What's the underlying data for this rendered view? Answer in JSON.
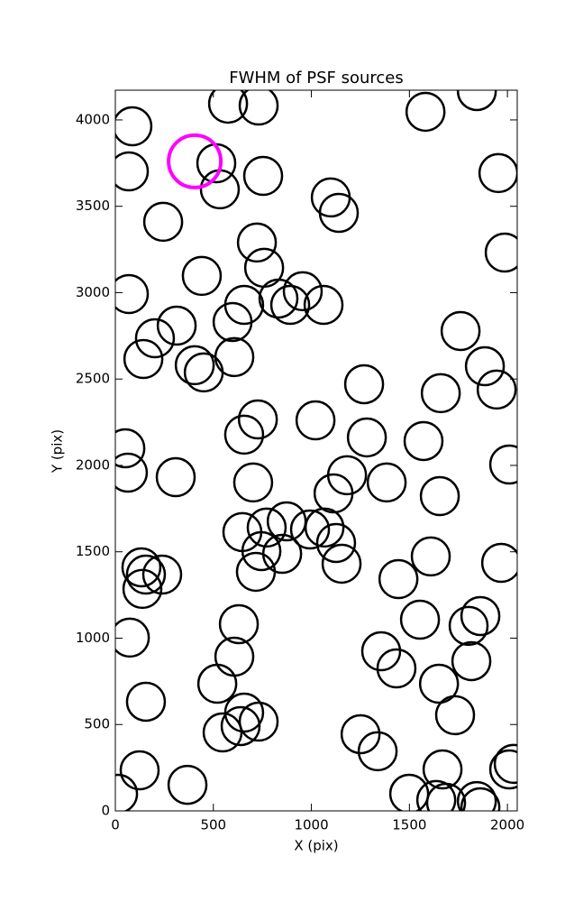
{
  "chart_data": {
    "type": "scatter",
    "title": "FWHM of PSF sources",
    "x_label": "X (pix)",
    "y_label": "Y (pix)",
    "xlim": [
      0,
      2050
    ],
    "ylim": [
      0,
      4172
    ],
    "xticks": [
      0,
      500,
      1000,
      1500,
      2000
    ],
    "yticks": [
      0,
      500,
      1000,
      1500,
      2000,
      2500,
      3000,
      3500,
      4000
    ],
    "series": [
      {
        "color": "#000000",
        "x": [
          87,
          575,
          731,
          69,
          515,
          533,
          754,
          244,
          1099,
          1140,
          722,
          441,
          69,
          759,
          657,
          956,
          832,
          892,
          1062,
          313,
          202,
          143,
          598,
          607,
          405,
          451,
          1582,
          1844,
          1954,
          1986,
          1761,
          1885,
          1945,
          1269,
          1660,
          1021,
          727,
          657,
          1283,
          1572,
          51,
          64,
          308,
          703,
          1182,
          1113,
          1384,
          2009,
          1655,
          648,
          772,
          874,
          993,
          1067,
          1126,
          1154,
          745,
          851,
          717,
          133,
          156,
          239,
          138,
          1609,
          1968,
          1444,
          1554,
          1862,
          1802,
          630,
          74,
          607,
          1356,
          1434,
          1816,
          1651,
          520,
          156,
          1733,
          657,
          731,
          639,
          547,
          1251,
          1338,
          124,
          368,
          14,
          1669,
          1499,
          1637,
          1687,
          1844,
          1862,
          2009,
          2032
        ],
        "values": [
          3963,
          4094,
          4083,
          3702,
          3749,
          3598,
          3676,
          3410,
          3551,
          3462,
          3290,
          3097,
          2992,
          3144,
          2929,
          3008,
          2966,
          2929,
          2929,
          2809,
          2736,
          2616,
          2830,
          2627,
          2580,
          2538,
          4047,
          4167,
          3692,
          3232,
          2778,
          2574,
          2439,
          2470,
          2418,
          2261,
          2266,
          2178,
          2162,
          2141,
          2099,
          1958,
          1932,
          1901,
          1943,
          1838,
          1901,
          2005,
          1822,
          1614,
          1640,
          1676,
          1629,
          1640,
          1551,
          1431,
          1504,
          1488,
          1384,
          1410,
          1368,
          1368,
          1285,
          1473,
          1436,
          1342,
          1107,
          1128,
          1071,
          1081,
          1003,
          893,
          924,
          825,
          867,
          736,
          736,
          632,
          554,
          569,
          517,
          491,
          454,
          444,
          345,
          235,
          151,
          99,
          240,
          99,
          63,
          47,
          57,
          21,
          240,
          272
        ]
      },
      {
        "color": "#ff00ff",
        "x": [
          405
        ],
        "values": [
          3760
        ]
      }
    ]
  }
}
